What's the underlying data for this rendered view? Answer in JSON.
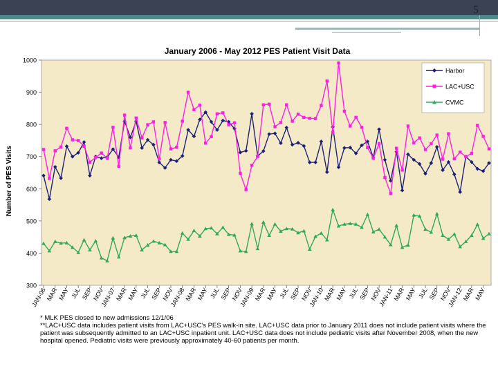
{
  "slide": {
    "page_number": "5"
  },
  "chart_data": {
    "type": "line",
    "title": "January 2006 - May 2012 PES Patient Visit Data",
    "ylabel": "Number of PES Visits",
    "xlabel": "",
    "ylim": [
      300,
      1000
    ],
    "yticks": [
      300,
      400,
      500,
      600,
      700,
      800,
      900,
      1000
    ],
    "grid": false,
    "legend": "top-right",
    "xtick_labels": [
      "JAN-06",
      "MAR",
      "MAY",
      "JUL",
      "SEP",
      "NOV",
      "JAN-07",
      "MAR",
      "MAY",
      "JUL",
      "SEP",
      "NOV",
      "JAN-08",
      "MAR",
      "MAY",
      "JUL",
      "SEP",
      "NOV",
      "JAN-09",
      "MAR",
      "MAY",
      "JUL",
      "SEP",
      "NOV",
      "JAN-10",
      "MAR",
      "MAY",
      "JUL",
      "SEP",
      "NOV",
      "JAN-11",
      "MAR",
      "MAY",
      "JUL",
      "SEP",
      "NOV",
      "JAN-12",
      "MAR",
      "MAY"
    ],
    "series": [
      {
        "name": "Harbor",
        "color": "#1c1f78",
        "marker": "diamond",
        "values": [
          641,
          568,
          668,
          633,
          732,
          700,
          712,
          745,
          641,
          700,
          695,
          698,
          723,
          698,
          810,
          760,
          810,
          727,
          752,
          737,
          682,
          665,
          690,
          686,
          702,
          783,
          763,
          815,
          838,
          808,
          783,
          812,
          808,
          787,
          713,
          718,
          833,
          702,
          717,
          770,
          772,
          742,
          790,
          737,
          743,
          733,
          682,
          682,
          747,
          652,
          792,
          667,
          727,
          728,
          710,
          735,
          747,
          697,
          785,
          690,
          625,
          715,
          595,
          707,
          690,
          677,
          647,
          680,
          730,
          658,
          683,
          645,
          590,
          700,
          683,
          662,
          655,
          680
        ]
      },
      {
        "name": "LAC+USC",
        "color": "#ff1ee6",
        "marker": "square",
        "values": [
          722,
          632,
          718,
          730,
          788,
          752,
          750,
          732,
          683,
          697,
          711,
          695,
          791,
          670,
          829,
          727,
          820,
          758,
          799,
          808,
          693,
          806,
          724,
          729,
          810,
          900,
          846,
          860,
          742,
          762,
          833,
          836,
          799,
          805,
          648,
          597,
          673,
          700,
          861,
          863,
          793,
          806,
          861,
          810,
          832,
          822,
          819,
          818,
          859,
          935,
          775,
          991,
          841,
          795,
          822,
          791,
          728,
          695,
          740,
          635,
          585,
          726,
          658,
          795,
          743,
          758,
          722,
          740,
          767,
          692,
          771,
          693,
          714,
          700,
          710,
          797,
          763,
          724
        ]
      },
      {
        "name": "CVMC",
        "color": "#2ea85a",
        "marker": "triangle",
        "values": [
          430,
          407,
          436,
          431,
          432,
          418,
          402,
          441,
          410,
          438,
          385,
          376,
          447,
          388,
          448,
          453,
          455,
          410,
          425,
          437,
          432,
          426,
          405,
          405,
          462,
          443,
          470,
          453,
          476,
          478,
          460,
          480,
          458,
          456,
          407,
          405,
          491,
          414,
          496,
          455,
          490,
          468,
          476,
          475,
          463,
          469,
          412,
          452,
          462,
          441,
          535,
          484,
          490,
          492,
          490,
          480,
          520,
          466,
          474,
          450,
          426,
          486,
          418,
          425,
          518,
          515,
          474,
          465,
          522,
          455,
          443,
          459,
          420,
          436,
          455,
          489,
          446,
          460
        ]
      }
    ]
  },
  "notes": {
    "line1": "* MLK PES closed to new admissions 12/1/06",
    "line2": "**LAC+USC data includes patient visits from LAC+USC's PES walk-in site.  LAC+USC data prior to January 2011 does not include patient visits where the patient was subsequently admitted to an LAC+USC inpatient unit.  LAC+USC data does not include pediatric visits after November 2008, when the new hospital opened.  Pediatric visits were previously approximately 40-60 patients per month."
  }
}
